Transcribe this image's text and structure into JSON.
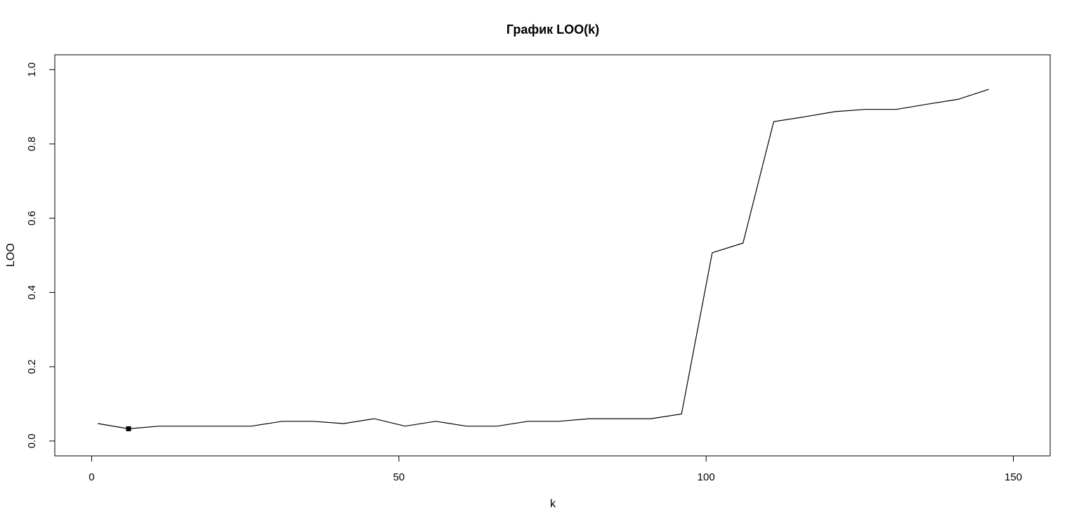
{
  "chart_data": {
    "type": "line",
    "title": "График LOO(k)",
    "xlabel": "k",
    "ylabel": "LOO",
    "xlim": [
      -6,
      156
    ],
    "ylim": [
      -0.04,
      1.04
    ],
    "xticks": [
      0,
      50,
      100,
      150
    ],
    "yticks": [
      0.0,
      0.2,
      0.4,
      0.6,
      0.8,
      1.0
    ],
    "xtick_labels": [
      "0",
      "50",
      "100",
      "150"
    ],
    "ytick_labels": [
      "0.0",
      "0.2",
      "0.4",
      "0.6",
      "0.8",
      "1.0"
    ],
    "grid": false,
    "series": [
      {
        "x": [
          1,
          6,
          11,
          16,
          21,
          26,
          31,
          36,
          41,
          46,
          51,
          56,
          61,
          66,
          71,
          76,
          81,
          86,
          91,
          96,
          101,
          106,
          111,
          116,
          121,
          126,
          131,
          136,
          141,
          146
        ],
        "y": [
          0.047,
          0.033,
          0.04,
          0.04,
          0.04,
          0.04,
          0.053,
          0.053,
          0.047,
          0.06,
          0.04,
          0.053,
          0.04,
          0.04,
          0.053,
          0.053,
          0.06,
          0.06,
          0.06,
          0.073,
          0.507,
          0.533,
          0.86,
          0.873,
          0.887,
          0.893,
          0.893,
          0.907,
          0.92,
          0.947
        ]
      }
    ],
    "highlight_point": {
      "x": 6,
      "y": 0.033,
      "marker": "filled-square"
    }
  }
}
